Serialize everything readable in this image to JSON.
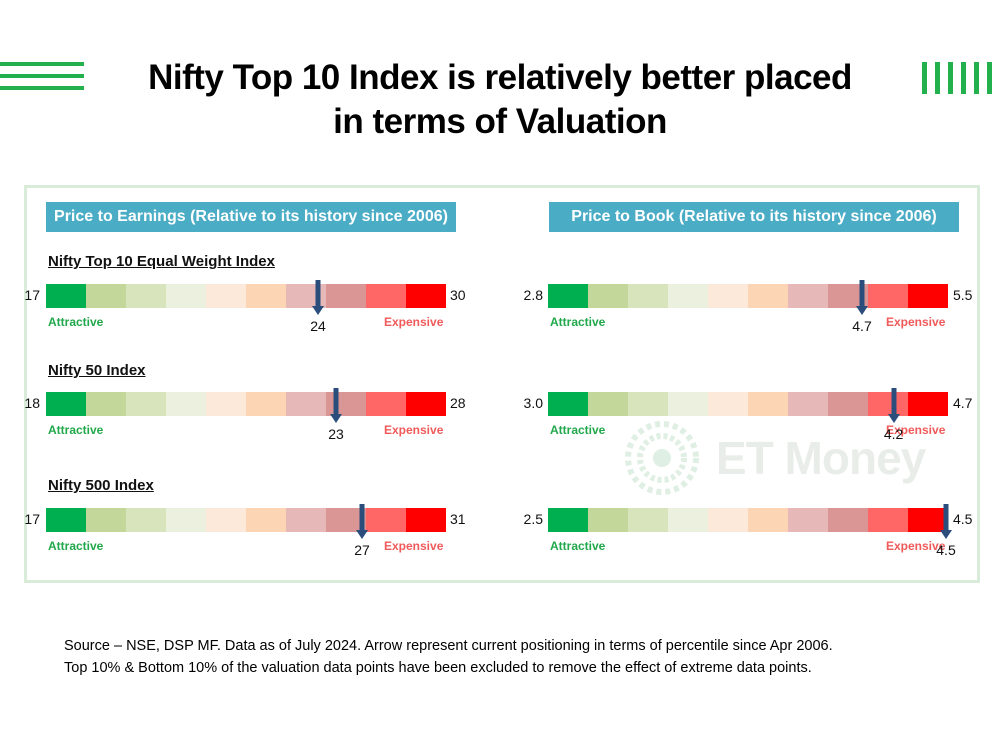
{
  "title_line1": "Nifty Top 10 Index is relatively better placed",
  "title_line2": "in terms of Valuation",
  "watermark": "ET Money",
  "colors": {
    "accent_green": "#22b14c",
    "header_blue": "#4bacc6",
    "arrow": "#2a4d7c",
    "scale": [
      "#00b050",
      "#c4d79b",
      "#d8e4bc",
      "#ebf1de",
      "#fde9d9",
      "#fcd5b4",
      "#e6b8b7",
      "#da9694",
      "#ff6666",
      "#ff0000"
    ]
  },
  "source_line1": "Source – NSE, DSP MF. Data as of July 2024. Arrow represent current positioning in terms of percentile since Apr 2006.",
  "source_line2": "Top 10% & Bottom 10% of the valuation data points have been excluded to remove the effect of extreme data points.",
  "chart_data": [
    {
      "type": "gauge-bar",
      "title": "Price to Earnings (Relative to its history since 2006)",
      "low_label": "Attractive",
      "high_label": "Expensive",
      "rows": [
        {
          "name": "Nifty Top 10 Equal Weight Index",
          "min": "17",
          "max": "30",
          "current": "24",
          "position": 0.68
        },
        {
          "name": "Nifty 50 Index",
          "min": "18",
          "max": "28",
          "current": "23",
          "position": 0.725
        },
        {
          "name": "Nifty 500 Index",
          "min": "17",
          "max": "31",
          "current": "27",
          "position": 0.79
        }
      ]
    },
    {
      "type": "gauge-bar",
      "title": "Price to Book (Relative to its history since 2006)",
      "low_label": "Attractive",
      "high_label": "Expensive",
      "rows": [
        {
          "name": "",
          "min": "2.8",
          "max": "5.5",
          "current": "4.7",
          "position": 0.785
        },
        {
          "name": "",
          "min": "3.0",
          "max": "4.7",
          "current": "4.2",
          "position": 0.864
        },
        {
          "name": "",
          "min": "2.5",
          "max": "4.5",
          "current": "4.5",
          "position": 0.995
        }
      ]
    }
  ]
}
